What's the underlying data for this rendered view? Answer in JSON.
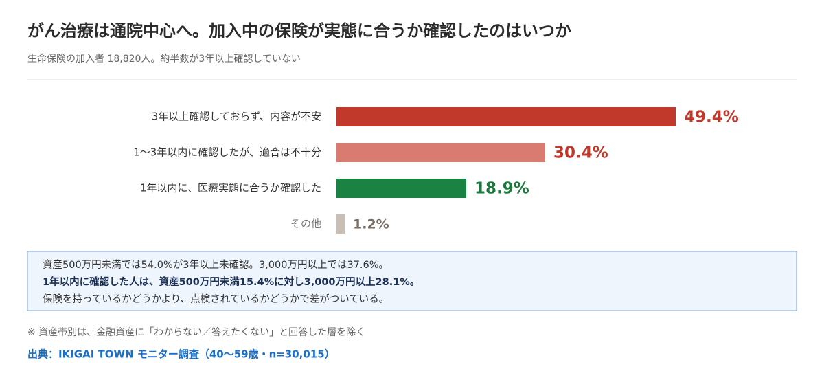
{
  "chart_data": {
    "type": "bar",
    "orientation": "horizontal",
    "title": "がん治療は通院中心へ。加入中の保険が実態に合うか確認したのはいつか",
    "subtitle": "生命保険の加入者 18,820人。約半数が3年以上確認していない",
    "categories": [
      "3年以上確認しておらず、内容が不安",
      "1〜3年以内に確認したが、適合は不十分",
      "1年以内に、医療実態に合うか確認した",
      "その他"
    ],
    "values": [
      49.4,
      30.4,
      18.9,
      1.2
    ],
    "value_labels": [
      "49.4%",
      "30.4%",
      "18.9%",
      "1.2%"
    ],
    "colors": [
      "#c0392b",
      "#d97b70",
      "#1a8242",
      "#c9bfb4"
    ],
    "label_colors": [
      "#c0392b",
      "#c0392b",
      "#1a7a3c",
      "#7a6e64"
    ],
    "note": {
      "lines": [
        "資産500万円未満では54.0%が3年以上未確認。3,000万円以上では37.6%。",
        "1年以内に確認した人は、資産500万円未満15.4%に対し3,000万円以上28.1%。",
        "保険を持っているかどうかより、点検されているかどうかで差がついている。"
      ],
      "bold_line": 1
    },
    "footnote": "※ 資産帯別は、金融資産に「わからない／答えたくない」と回答した層を除く",
    "source": "出典：IKIGAI TOWN モニター調査（40〜59歳・n=30,015）"
  }
}
